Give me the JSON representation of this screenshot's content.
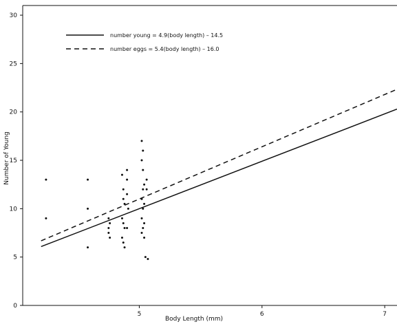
{
  "chart_data": {
    "type": "scatter",
    "title": "",
    "xlabel": "Body Length (mm)",
    "ylabel": "Number of Young",
    "xlim": [
      4.05,
      7.1
    ],
    "ylim": [
      0,
      31
    ],
    "xticks": [
      5,
      6,
      7
    ],
    "yticks": [
      0,
      5,
      10,
      15,
      20,
      25,
      30
    ],
    "grid": false,
    "legend_position": "top-left",
    "lines": [
      {
        "name": "number young = 4.9(body length) – 14.5",
        "slope": 4.9,
        "intercept": -14.5,
        "style": "solid",
        "x_range": [
          4.2,
          7.1
        ]
      },
      {
        "name": "number eggs = 5.4(body length) – 16.0",
        "slope": 5.4,
        "intercept": -16.0,
        "style": "dashed",
        "x_range": [
          4.2,
          7.1
        ]
      }
    ],
    "points": [
      [
        4.24,
        13
      ],
      [
        4.24,
        9
      ],
      [
        4.58,
        13
      ],
      [
        4.58,
        10
      ],
      [
        4.58,
        6
      ],
      [
        4.75,
        9
      ],
      [
        4.75,
        8
      ],
      [
        4.75,
        7.5
      ],
      [
        4.76,
        7
      ],
      [
        4.76,
        8.5
      ],
      [
        4.86,
        13.5
      ],
      [
        4.87,
        12
      ],
      [
        4.87,
        11
      ],
      [
        4.88,
        10.5
      ],
      [
        4.86,
        9
      ],
      [
        4.87,
        8.5
      ],
      [
        4.88,
        8
      ],
      [
        4.86,
        7
      ],
      [
        4.87,
        6.5
      ],
      [
        4.88,
        6
      ],
      [
        4.9,
        14
      ],
      [
        4.9,
        13
      ],
      [
        4.9,
        11.5
      ],
      [
        4.91,
        10
      ],
      [
        4.9,
        8
      ],
      [
        5.02,
        17
      ],
      [
        5.03,
        16
      ],
      [
        5.02,
        15
      ],
      [
        5.03,
        14
      ],
      [
        5.04,
        12.5
      ],
      [
        5.03,
        12
      ],
      [
        5.02,
        11
      ],
      [
        5.04,
        10.5
      ],
      [
        5.03,
        10
      ],
      [
        5.02,
        9
      ],
      [
        5.04,
        8.5
      ],
      [
        5.03,
        8
      ],
      [
        5.02,
        7.5
      ],
      [
        5.04,
        7
      ],
      [
        5.05,
        5
      ],
      [
        5.07,
        4.8
      ],
      [
        5.06,
        13
      ],
      [
        5.06,
        12
      ]
    ]
  }
}
